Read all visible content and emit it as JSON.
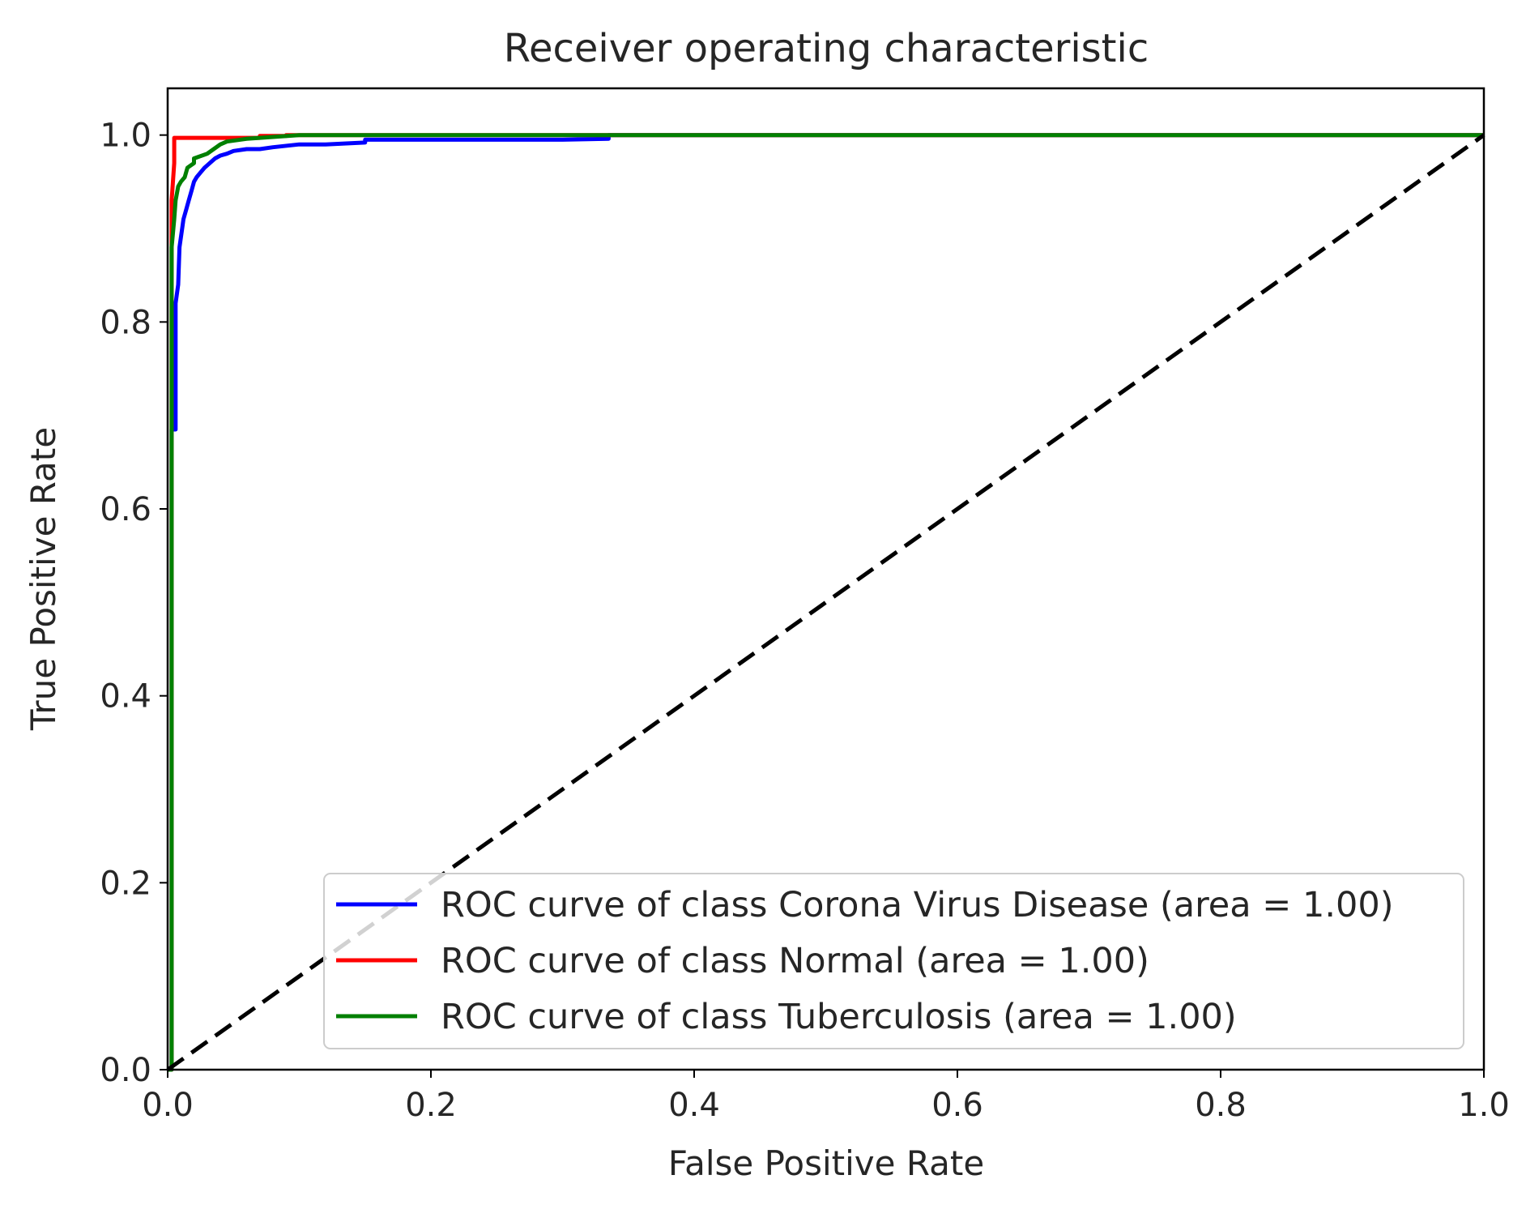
{
  "chart_data": {
    "type": "line",
    "title": "Receiver operating characteristic",
    "xlabel": "False Positive Rate",
    "ylabel": "True Positive Rate",
    "xlim": [
      0.0,
      1.0
    ],
    "ylim": [
      0.0,
      1.05
    ],
    "xticks": [
      0.0,
      0.2,
      0.4,
      0.6,
      0.8,
      1.0
    ],
    "yticks": [
      0.0,
      0.2,
      0.4,
      0.6,
      0.8,
      1.0
    ],
    "xtick_labels": [
      "0.0",
      "0.2",
      "0.4",
      "0.6",
      "0.8",
      "1.0"
    ],
    "ytick_labels": [
      "0.0",
      "0.2",
      "0.4",
      "0.6",
      "0.8",
      "1.0"
    ],
    "legend_position": "lower-right",
    "grid": false,
    "series": [
      {
        "name": "ROC curve of class Corona Virus Disease (area = 1.00)",
        "color": "#0000ff",
        "x": [
          0.0,
          0.003,
          0.003,
          0.006,
          0.006,
          0.008,
          0.009,
          0.011,
          0.012,
          0.014,
          0.016,
          0.018,
          0.02,
          0.022,
          0.025,
          0.028,
          0.032,
          0.036,
          0.04,
          0.045,
          0.05,
          0.06,
          0.07,
          0.08,
          0.1,
          0.12,
          0.15,
          0.15,
          0.2,
          0.25,
          0.3,
          0.335,
          0.335,
          1.0
        ],
        "y": [
          0.0,
          0.0,
          0.685,
          0.685,
          0.82,
          0.84,
          0.88,
          0.9,
          0.91,
          0.92,
          0.93,
          0.94,
          0.95,
          0.955,
          0.96,
          0.965,
          0.97,
          0.975,
          0.978,
          0.98,
          0.983,
          0.985,
          0.985,
          0.987,
          0.99,
          0.99,
          0.992,
          0.995,
          0.995,
          0.995,
          0.995,
          0.996,
          1.0,
          1.0
        ]
      },
      {
        "name": "ROC curve of class Normal (area = 1.00)",
        "color": "#ff0000",
        "x": [
          0.0,
          0.003,
          0.003,
          0.005,
          0.005,
          0.07,
          0.07,
          0.09,
          0.09,
          1.0
        ],
        "y": [
          0.0,
          0.0,
          0.93,
          0.97,
          0.997,
          0.997,
          0.999,
          0.999,
          1.0,
          1.0
        ]
      },
      {
        "name": "ROC curve of class Tuberculosis (area = 1.00)",
        "color": "#008000",
        "x": [
          0.0,
          0.003,
          0.003,
          0.005,
          0.006,
          0.008,
          0.01,
          0.013,
          0.015,
          0.02,
          0.02,
          0.03,
          0.04,
          0.045,
          0.06,
          0.08,
          0.1,
          1.0
        ],
        "y": [
          0.0,
          0.0,
          0.88,
          0.91,
          0.93,
          0.945,
          0.95,
          0.955,
          0.965,
          0.97,
          0.975,
          0.98,
          0.99,
          0.993,
          0.996,
          0.998,
          1.0,
          1.0
        ]
      },
      {
        "name": "chance",
        "color": "#000000",
        "style": "dashed",
        "x": [
          0.0,
          1.0
        ],
        "y": [
          0.0,
          1.0
        ]
      }
    ]
  }
}
